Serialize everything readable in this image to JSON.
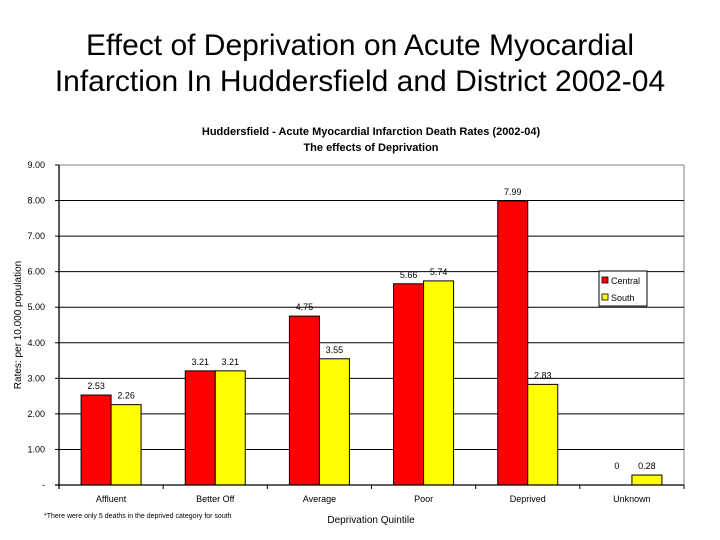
{
  "slide": {
    "title_line1": "Effect of Deprivation on Acute Myocardial",
    "title_line2": "Infarction In Huddersfield and District 2002-04"
  },
  "chart_data": {
    "type": "bar",
    "title": "Huddersfield - Acute Myocardial Infarction Death Rates (2002-04)",
    "subtitle": "The effects of Deprivation",
    "xlabel": "Deprivation Quintile",
    "ylabel": "Rates: per 10,000 population",
    "ylim": [
      0,
      9
    ],
    "yticks": [
      0,
      1,
      2,
      3,
      4,
      5,
      6,
      7,
      8,
      9
    ],
    "ytick_labels": [
      "-",
      "1.00",
      "2.00",
      "3.00",
      "4.00",
      "5.00",
      "6.00",
      "7.00",
      "8.00",
      "9.00"
    ],
    "grid": true,
    "legend_position": "right",
    "categories": [
      "Affluent",
      "Better Off",
      "Average",
      "Poor",
      "Deprived",
      "Unknown"
    ],
    "series": [
      {
        "name": "Central",
        "color": "#ff0000",
        "values": [
          2.53,
          3.21,
          4.75,
          5.66,
          7.99,
          0
        ],
        "labels": [
          "2.53",
          "3.21",
          "4.75",
          "5.66",
          "7.99",
          "0"
        ]
      },
      {
        "name": "South",
        "color": "#ffff00",
        "values": [
          2.26,
          3.21,
          3.55,
          5.74,
          2.83,
          0.28
        ],
        "labels": [
          "2.26",
          "3.21",
          "3.55",
          "5.74",
          "2.83",
          "0.28"
        ]
      }
    ],
    "footnote": "*There were only 5 deaths in the deprived category for south"
  }
}
